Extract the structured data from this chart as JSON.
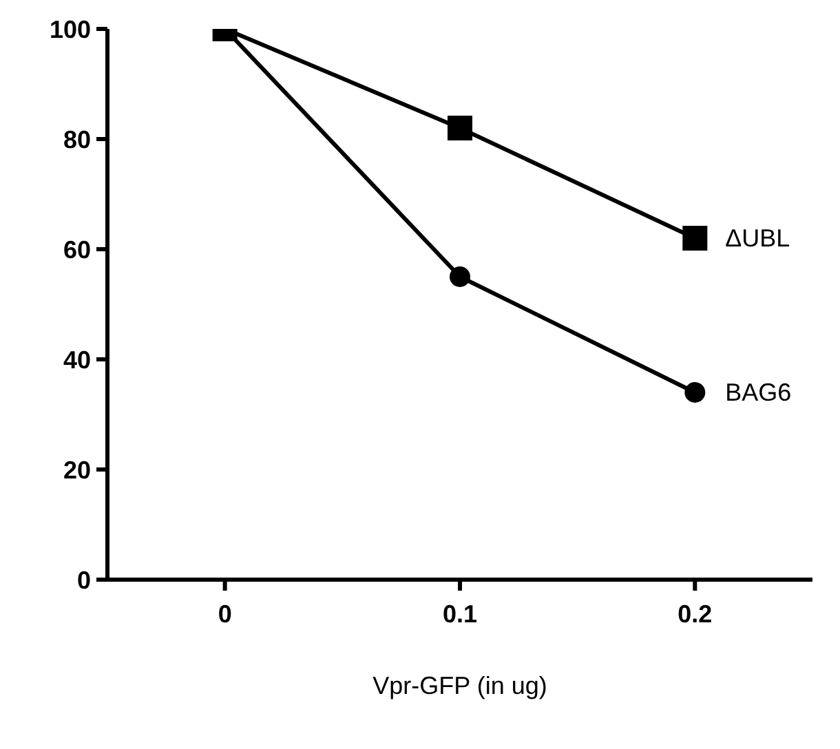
{
  "chart_data": {
    "type": "line",
    "xlabel": "Vpr-GFP (in ug)",
    "x": [
      0,
      0.1,
      0.2
    ],
    "series": [
      {
        "name": "ΔUBL",
        "color": "#000000",
        "values": [
          100,
          82,
          62
        ],
        "marker": "square"
      },
      {
        "name": "BAG6",
        "color": "#000000",
        "values": [
          100,
          55,
          34
        ],
        "marker": "circle"
      }
    ],
    "xlim": [
      -0.05,
      0.25
    ],
    "xticks": [
      0,
      0.1,
      0.2
    ],
    "ylim": [
      0,
      100
    ],
    "yticks": [
      0,
      20,
      40,
      60,
      80,
      100
    ],
    "grid": false,
    "legend": false
  }
}
